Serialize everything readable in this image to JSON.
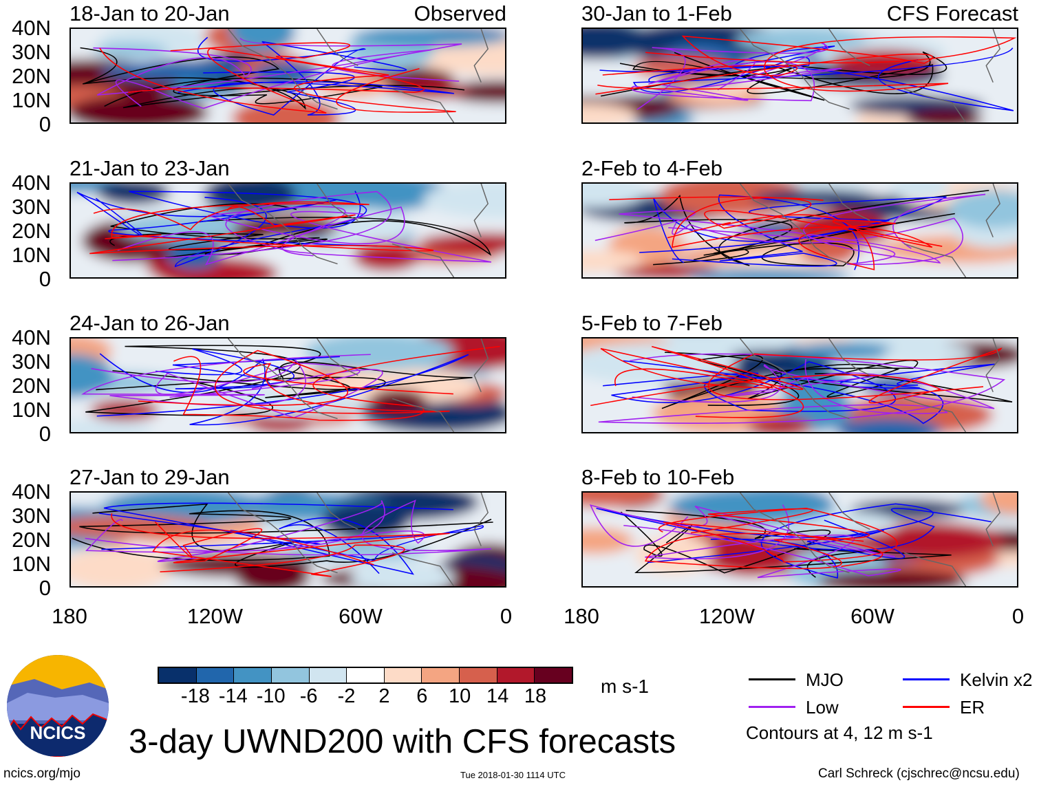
{
  "panels": [
    {
      "title": "18-Jan to 20-Jan",
      "tag": "Observed"
    },
    {
      "title": "21-Jan to 23-Jan"
    },
    {
      "title": "24-Jan to 26-Jan"
    },
    {
      "title": "27-Jan to 29-Jan"
    },
    {
      "title": "30-Jan to 1-Feb",
      "tag": "CFS Forecast"
    },
    {
      "title": "2-Feb to 4-Feb"
    },
    {
      "title": "5-Feb to 7-Feb"
    },
    {
      "title": "8-Feb to 10-Feb"
    }
  ],
  "lat_labels": [
    "40N",
    "30N",
    "20N",
    "10N",
    "0"
  ],
  "lon_labels": [
    "180",
    "120W",
    "60W",
    "0"
  ],
  "colorbar": {
    "colors": [
      "#08306b",
      "#2166ac",
      "#4393c3",
      "#92c5de",
      "#d1e5f0",
      "#ffffff",
      "#fddbc7",
      "#f4a582",
      "#d6604d",
      "#b2182b",
      "#67001f"
    ],
    "labels": [
      "-18",
      "-14",
      "-10",
      "-6",
      "-2",
      "2",
      "6",
      "10",
      "14",
      "18"
    ],
    "units": "m s-1"
  },
  "legend": [
    {
      "label": "MJO",
      "color": "#000000"
    },
    {
      "label": "Kelvin x2",
      "color": "#0000ff"
    },
    {
      "label": "Low",
      "color": "#a020f0"
    },
    {
      "label": "ER",
      "color": "#ff0000"
    }
  ],
  "contour_note": "Contours at 4, 12 m s-1",
  "title": "3-day UWND200 with CFS forecasts",
  "logo_text": "NCICS",
  "footer": {
    "left": "ncics.org/mjo",
    "center": "Tue 2018-01-30 1114 UTC",
    "right": "Carl Schreck (cjschrec@ncsu.edu)"
  }
}
